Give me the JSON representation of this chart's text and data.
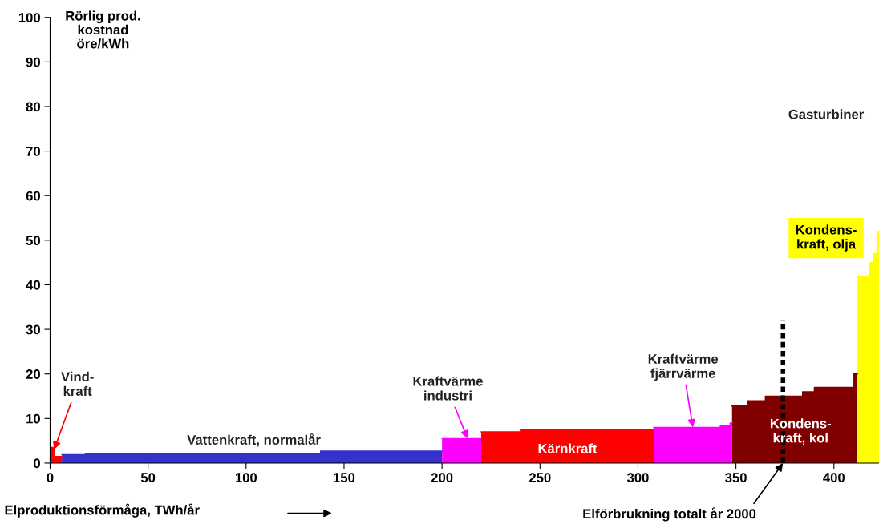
{
  "chart_data": {
    "type": "area",
    "xlabel": "Elproduktionsförmåga, TWh/år",
    "ylabel": "Rörlig prod.\nkostnad\nöre/kWh",
    "xlim": [
      0,
      423
    ],
    "ylim": [
      0,
      100
    ],
    "xticks": [
      0,
      50,
      100,
      150,
      200,
      250,
      300,
      350,
      400
    ],
    "yticks": [
      0,
      10,
      20,
      30,
      40,
      50,
      60,
      70,
      80,
      90,
      100
    ],
    "grid": false,
    "legend": false,
    "series": [
      {
        "color": "#ff0000",
        "x": [
          0,
          2,
          2,
          6
        ],
        "values": [
          3.5,
          3.5,
          1.5,
          1.5
        ]
      },
      {
        "color": "#3333cc",
        "x": [
          6,
          18,
          18,
          138,
          138,
          200
        ],
        "values": [
          1.9,
          1.9,
          2.2,
          2.2,
          2.7,
          2.7
        ]
      },
      {
        "color": "#ff00ff",
        "x": [
          200,
          220
        ],
        "values": [
          5.5,
          5.5
        ]
      },
      {
        "color": "#ff0000",
        "x": [
          220,
          240,
          240,
          308
        ],
        "values": [
          7,
          7,
          7.6,
          7.6
        ]
      },
      {
        "color": "#ff00ff",
        "x": [
          308,
          342,
          342,
          347,
          347,
          348
        ],
        "values": [
          8,
          8,
          8.5,
          8.5,
          9,
          9
        ]
      },
      {
        "color": "#800000",
        "x": [
          348,
          356,
          356,
          365,
          365,
          384,
          384,
          390,
          390,
          410,
          410,
          412
        ],
        "values": [
          12.8,
          12.8,
          14,
          14,
          15,
          15,
          16,
          16,
          17,
          17,
          20,
          20
        ]
      },
      {
        "color": "#ffff00",
        "x": [
          412,
          418,
          418,
          420,
          420,
          422,
          422,
          423
        ],
        "values": [
          42,
          42,
          45,
          45,
          47,
          47,
          52,
          52
        ]
      },
      {
        "type": "line",
        "color": "#000000",
        "line_style": "dotted",
        "x": [
          374,
          374
        ],
        "values": [
          0,
          32
        ]
      }
    ],
    "annotations": [
      {
        "text": "Vind-\nkraft",
        "x": 2,
        "y": 3
      },
      "Vattenkraft, normalår",
      {
        "text": "Kraftvärme\nindustri",
        "x": 213,
        "y": 5.5
      },
      "Kärnkraft",
      {
        "text": "Kraftvärme\nfjärrvärme",
        "x": 328,
        "y": 8
      },
      "Kondens-\nkraft, kol",
      "Kondens-\nkraft, olja",
      "Gasturbiner",
      {
        "text": "Elförbrukning totalt år 2000",
        "x": 374,
        "y": 0
      }
    ]
  }
}
